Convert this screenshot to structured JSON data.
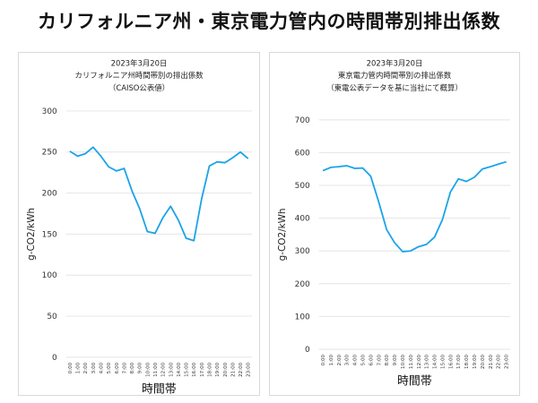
{
  "title": "カリフォルニア州・東京電力管内の時間帯別排出係数",
  "chart_data": [
    {
      "type": "line",
      "title": [
        "2023年3月20日",
        "カリフォルニア州時間帯別の排出係数",
        "（CAISO公表値）"
      ],
      "xlabel": "時間帯",
      "ylabel": "g-CO2/kWh",
      "ylim": [
        0,
        300
      ],
      "yticks": [
        0,
        50,
        100,
        150,
        200,
        250,
        300
      ],
      "grid": true,
      "color": "#1aa3e8",
      "categories": [
        "0:00",
        "1:00",
        "2:00",
        "3:00",
        "4:00",
        "5:00",
        "6:00",
        "7:00",
        "8:00",
        "9:00",
        "10:00",
        "11:00",
        "12:00",
        "13:00",
        "14:00",
        "15:00",
        "16:00",
        "17:00",
        "18:00",
        "19:00",
        "20:00",
        "21:00",
        "22:00",
        "23:00"
      ],
      "values": [
        251,
        245,
        248,
        256,
        245,
        232,
        227,
        230,
        203,
        181,
        153,
        151,
        170,
        184,
        167,
        145,
        142,
        193,
        233,
        238,
        237,
        243,
        250,
        242
      ]
    },
    {
      "type": "line",
      "title": [
        "2023年3月20日",
        "東京電力管内時間帯別の排出係数",
        "（東電公表データを基に当社にて概算）"
      ],
      "xlabel": "時間帯",
      "ylabel": "g-CO2/kWh",
      "ylim": [
        0,
        700
      ],
      "yticks": [
        0,
        100,
        200,
        300,
        400,
        500,
        600,
        700
      ],
      "grid": true,
      "color": "#1aa3e8",
      "categories": [
        "0:00",
        "1:00",
        "2:00",
        "3:00",
        "4:00",
        "5:00",
        "6:00",
        "7:00",
        "8:00",
        "9:00",
        "10:00",
        "11:00",
        "12:00",
        "13:00",
        "14:00",
        "15:00",
        "16:00",
        "17:00",
        "18:00",
        "19:00",
        "20:00",
        "21:00",
        "22:00",
        "23:00"
      ],
      "values": [
        545,
        555,
        557,
        560,
        552,
        553,
        528,
        450,
        365,
        325,
        298,
        300,
        313,
        320,
        342,
        396,
        480,
        520,
        512,
        525,
        550,
        557,
        565,
        572
      ]
    }
  ]
}
